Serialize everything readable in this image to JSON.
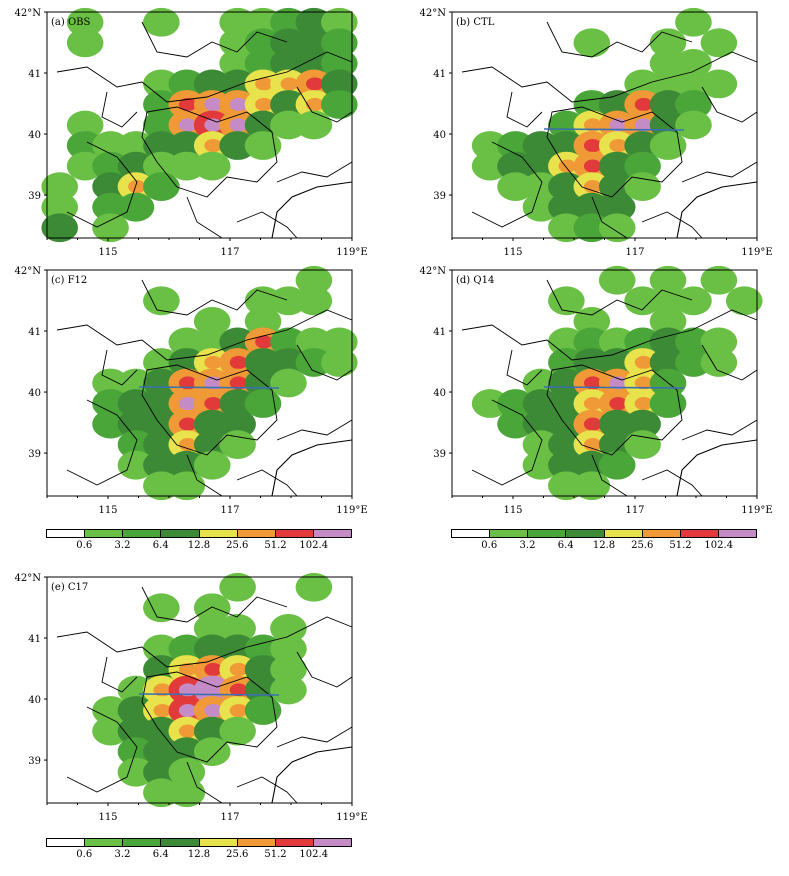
{
  "panels": [
    {
      "id": "a",
      "label": "(a) OBS",
      "lat_ticks": [
        "42°N",
        "41",
        "40",
        "39"
      ],
      "lon_ticks": [
        "115",
        "117",
        "119°E"
      ],
      "cells": [
        [
          0.0,
          0.15,
          0.0,
          0.0,
          0.1,
          0.0,
          0.0,
          0.2,
          0.1,
          0.3,
          0.4,
          0.2
        ],
        [
          0.0,
          0.1,
          0.0,
          0.0,
          0.0,
          0.0,
          0.0,
          0.1,
          0.3,
          0.4,
          0.5,
          0.3
        ],
        [
          0.0,
          0.0,
          0.0,
          0.0,
          0.0,
          0.0,
          0.0,
          0.1,
          0.3,
          0.5,
          0.4,
          0.3
        ],
        [
          0.0,
          0.0,
          0.0,
          0.0,
          0.1,
          0.3,
          0.4,
          0.4,
          0.6,
          0.6,
          0.7,
          0.5
        ],
        [
          0.0,
          0.0,
          0.0,
          0.0,
          0.3,
          0.7,
          0.8,
          0.8,
          0.6,
          0.5,
          0.6,
          0.3
        ],
        [
          0.0,
          0.1,
          0.0,
          0.0,
          0.3,
          0.8,
          0.9,
          0.8,
          0.4,
          0.2,
          0.1,
          0.0
        ],
        [
          0.0,
          0.3,
          0.1,
          0.2,
          0.4,
          0.5,
          0.6,
          0.4,
          0.1,
          0.0,
          0.0,
          0.0
        ],
        [
          0.0,
          0.1,
          0.3,
          0.4,
          0.2,
          0.1,
          0.1,
          0.0,
          0.0,
          0.0,
          0.0,
          0.0
        ],
        [
          0.1,
          0.0,
          0.5,
          0.6,
          0.3,
          0.0,
          0.0,
          0.0,
          0.0,
          0.0,
          0.0,
          0.0
        ],
        [
          0.2,
          0.0,
          0.3,
          0.3,
          0.0,
          0.0,
          0.0,
          0.0,
          0.0,
          0.0,
          0.0,
          0.0
        ],
        [
          0.4,
          0.0,
          0.1,
          0.0,
          0.0,
          0.0,
          0.0,
          0.0,
          0.0,
          0.0,
          0.0,
          0.0
        ]
      ]
    },
    {
      "id": "b",
      "label": "(b) CTL",
      "lat_ticks": [
        "42°N",
        "41",
        "40",
        "39"
      ],
      "lon_ticks": [
        "115",
        "117",
        "119°E"
      ],
      "cells": [
        [
          0.0,
          0.0,
          0.0,
          0.0,
          0.0,
          0.0,
          0.0,
          0.0,
          0.0,
          0.1,
          0.0,
          0.0
        ],
        [
          0.0,
          0.0,
          0.0,
          0.0,
          0.0,
          0.1,
          0.0,
          0.0,
          0.1,
          0.0,
          0.1,
          0.0
        ],
        [
          0.0,
          0.0,
          0.0,
          0.0,
          0.0,
          0.0,
          0.0,
          0.0,
          0.1,
          0.1,
          0.0,
          0.0
        ],
        [
          0.0,
          0.0,
          0.0,
          0.0,
          0.0,
          0.0,
          0.0,
          0.1,
          0.2,
          0.2,
          0.1,
          0.0
        ],
        [
          0.0,
          0.0,
          0.0,
          0.0,
          0.0,
          0.3,
          0.5,
          0.7,
          0.5,
          0.3,
          0.0,
          0.0
        ],
        [
          0.0,
          0.0,
          0.0,
          0.0,
          0.3,
          0.6,
          0.8,
          0.8,
          0.5,
          0.1,
          0.0,
          0.0
        ],
        [
          0.0,
          0.1,
          0.3,
          0.4,
          0.5,
          0.7,
          0.6,
          0.5,
          0.2,
          0.0,
          0.0,
          0.0
        ],
        [
          0.0,
          0.1,
          0.4,
          0.4,
          0.6,
          0.7,
          0.5,
          0.3,
          0.0,
          0.0,
          0.0,
          0.0
        ],
        [
          0.0,
          0.0,
          0.1,
          0.2,
          0.5,
          0.6,
          0.4,
          0.2,
          0.0,
          0.0,
          0.0,
          0.0
        ],
        [
          0.0,
          0.0,
          0.0,
          0.2,
          0.5,
          0.5,
          0.4,
          0.0,
          0.0,
          0.0,
          0.0,
          0.0
        ],
        [
          0.0,
          0.0,
          0.0,
          0.0,
          0.2,
          0.3,
          0.1,
          0.0,
          0.0,
          0.0,
          0.0,
          0.0
        ]
      ]
    },
    {
      "id": "c",
      "label": "(c) F12",
      "lat_ticks": [
        "42°N",
        "41",
        "40",
        "39"
      ],
      "lon_ticks": [
        "115",
        "117",
        "119°E"
      ],
      "cells": [
        [
          0.0,
          0.0,
          0.0,
          0.0,
          0.0,
          0.0,
          0.0,
          0.0,
          0.0,
          0.0,
          0.1,
          0.0
        ],
        [
          0.0,
          0.0,
          0.0,
          0.0,
          0.1,
          0.0,
          0.0,
          0.0,
          0.1,
          0.1,
          0.1,
          0.0
        ],
        [
          0.0,
          0.0,
          0.0,
          0.0,
          0.0,
          0.0,
          0.1,
          0.0,
          0.1,
          0.0,
          0.0,
          0.0
        ],
        [
          0.0,
          0.0,
          0.0,
          0.0,
          0.0,
          0.1,
          0.2,
          0.4,
          0.7,
          0.3,
          0.1,
          0.1
        ],
        [
          0.0,
          0.0,
          0.0,
          0.0,
          0.1,
          0.4,
          0.6,
          0.7,
          0.5,
          0.4,
          0.3,
          0.2
        ],
        [
          0.0,
          0.0,
          0.1,
          0.2,
          0.4,
          0.7,
          0.8,
          0.7,
          0.4,
          0.1,
          0.0,
          0.0
        ],
        [
          0.0,
          0.0,
          0.3,
          0.4,
          0.5,
          0.8,
          0.7,
          0.5,
          0.3,
          0.0,
          0.0,
          0.0
        ],
        [
          0.0,
          0.0,
          0.3,
          0.5,
          0.5,
          0.7,
          0.5,
          0.4,
          0.0,
          0.0,
          0.0,
          0.0
        ],
        [
          0.0,
          0.0,
          0.0,
          0.3,
          0.5,
          0.6,
          0.4,
          0.2,
          0.0,
          0.0,
          0.0,
          0.0
        ],
        [
          0.0,
          0.0,
          0.0,
          0.1,
          0.4,
          0.4,
          0.2,
          0.0,
          0.0,
          0.0,
          0.0,
          0.0
        ],
        [
          0.0,
          0.0,
          0.0,
          0.0,
          0.2,
          0.1,
          0.0,
          0.0,
          0.0,
          0.0,
          0.0,
          0.0
        ]
      ]
    },
    {
      "id": "d",
      "label": "(d) Q14",
      "lat_ticks": [
        "42°N",
        "41",
        "40",
        "39"
      ],
      "lon_ticks": [
        "115",
        "117",
        "119°E"
      ],
      "cells": [
        [
          0.0,
          0.0,
          0.0,
          0.0,
          0.0,
          0.0,
          0.1,
          0.0,
          0.1,
          0.0,
          0.1,
          0.0
        ],
        [
          0.0,
          0.0,
          0.0,
          0.0,
          0.1,
          0.0,
          0.0,
          0.1,
          0.1,
          0.1,
          0.0,
          0.1
        ],
        [
          0.0,
          0.0,
          0.0,
          0.0,
          0.0,
          0.1,
          0.0,
          0.0,
          0.1,
          0.0,
          0.0,
          0.0
        ],
        [
          0.0,
          0.0,
          0.0,
          0.0,
          0.2,
          0.3,
          0.2,
          0.3,
          0.5,
          0.3,
          0.2,
          0.0
        ],
        [
          0.0,
          0.0,
          0.0,
          0.0,
          0.3,
          0.5,
          0.5,
          0.6,
          0.4,
          0.3,
          0.1,
          0.0
        ],
        [
          0.0,
          0.0,
          0.0,
          0.2,
          0.4,
          0.7,
          0.8,
          0.6,
          0.3,
          0.0,
          0.0,
          0.0
        ],
        [
          0.0,
          0.1,
          0.3,
          0.4,
          0.5,
          0.6,
          0.7,
          0.6,
          0.3,
          0.0,
          0.0,
          0.0
        ],
        [
          0.0,
          0.0,
          0.3,
          0.4,
          0.4,
          0.7,
          0.5,
          0.4,
          0.0,
          0.0,
          0.0,
          0.0
        ],
        [
          0.0,
          0.0,
          0.0,
          0.2,
          0.5,
          0.6,
          0.5,
          0.2,
          0.0,
          0.0,
          0.0,
          0.0
        ],
        [
          0.0,
          0.0,
          0.0,
          0.1,
          0.4,
          0.5,
          0.3,
          0.0,
          0.0,
          0.0,
          0.0,
          0.0
        ],
        [
          0.0,
          0.0,
          0.0,
          0.0,
          0.2,
          0.2,
          0.0,
          0.0,
          0.0,
          0.0,
          0.0,
          0.0
        ]
      ]
    },
    {
      "id": "e",
      "label": "(e) C17",
      "lat_ticks": [
        "42°N",
        "41",
        "40",
        "39"
      ],
      "lon_ticks": [
        "115",
        "117",
        "119°E"
      ],
      "cells": [
        [
          0.0,
          0.0,
          0.0,
          0.0,
          0.0,
          0.0,
          0.0,
          0.1,
          0.0,
          0.0,
          0.1,
          0.0
        ],
        [
          0.0,
          0.0,
          0.0,
          0.0,
          0.1,
          0.0,
          0.1,
          0.0,
          0.0,
          0.0,
          0.0,
          0.0
        ],
        [
          0.0,
          0.0,
          0.0,
          0.0,
          0.0,
          0.0,
          0.1,
          0.1,
          0.0,
          0.1,
          0.0,
          0.0
        ],
        [
          0.0,
          0.0,
          0.0,
          0.0,
          0.1,
          0.3,
          0.4,
          0.4,
          0.3,
          0.2,
          0.0,
          0.0
        ],
        [
          0.0,
          0.0,
          0.0,
          0.0,
          0.4,
          0.6,
          0.7,
          0.6,
          0.4,
          0.2,
          0.0,
          0.0
        ],
        [
          0.0,
          0.0,
          0.0,
          0.2,
          0.6,
          0.9,
          0.95,
          0.7,
          0.4,
          0.1,
          0.0,
          0.0
        ],
        [
          0.0,
          0.0,
          0.2,
          0.4,
          0.6,
          0.9,
          0.8,
          0.6,
          0.3,
          0.0,
          0.0,
          0.0
        ],
        [
          0.0,
          0.0,
          0.1,
          0.4,
          0.5,
          0.6,
          0.4,
          0.2,
          0.0,
          0.0,
          0.0,
          0.0
        ],
        [
          0.0,
          0.0,
          0.0,
          0.3,
          0.5,
          0.4,
          0.2,
          0.0,
          0.0,
          0.0,
          0.0,
          0.0
        ],
        [
          0.0,
          0.0,
          0.0,
          0.1,
          0.4,
          0.2,
          0.0,
          0.0,
          0.0,
          0.0,
          0.0,
          0.0
        ],
        [
          0.0,
          0.0,
          0.0,
          0.0,
          0.2,
          0.1,
          0.0,
          0.0,
          0.0,
          0.0,
          0.0,
          0.0
        ]
      ]
    }
  ],
  "colorbar": {
    "colors": [
      "#ffffff",
      "#6abf45",
      "#4aa638",
      "#3d8a36",
      "#e8e34c",
      "#f09a37",
      "#e23a3a",
      "#c58bc6"
    ],
    "labels": [
      "0.6",
      "3.2",
      "6.4",
      "12.8",
      "25.6",
      "51.2",
      "102.4"
    ]
  },
  "colorbars_shown_under": [
    "c",
    "d",
    "e"
  ]
}
